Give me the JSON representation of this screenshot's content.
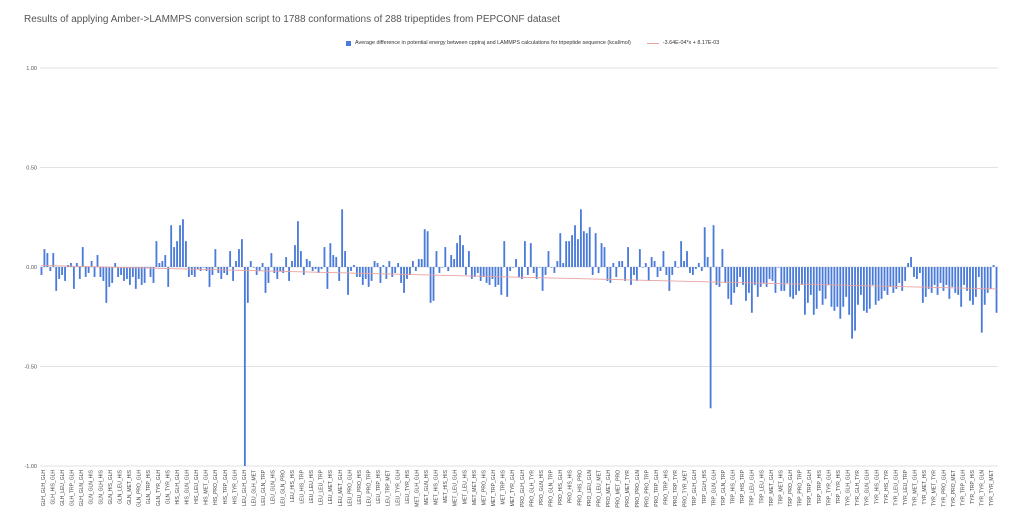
{
  "chart_data": {
    "type": "bar",
    "title": "Results of applying Amber->LAMMPS conversion script to 1788 conformations of 288 tripeptides from PEPCONF dataset",
    "xlabel": "",
    "ylabel": "",
    "ylim": [
      -1.0,
      1.0
    ],
    "yticks": [
      "-1.00",
      "-0.50",
      "0.00",
      "0.50",
      "1.00"
    ],
    "grid": true,
    "legend_position": "top-center",
    "series": [
      {
        "name": "Average difference in potential energy between cpptraj and LAMMPS calculations for tripeptide sequence (kcal/mol)",
        "color": "#4A7BD9"
      }
    ],
    "trendline": {
      "label": "-3.64E-04*x + 8.17E-03",
      "color": "#E8A1A1",
      "slope": -0.000364,
      "intercept": 0.00817
    },
    "visible_x_labels": [
      "GLH_GLH_GLH",
      "GLH_HIS_GLH",
      "GLH_LEU_GLH",
      "GLH_TRP_GLH",
      "GLH_GLN_GLH",
      "GLN_GLN_HIS",
      "GLN_GLH_HIS",
      "GLN_HIS_GLH",
      "GLN_LEU_HIS",
      "GLN_MET_HIS",
      "GLN_PRO_GLH",
      "GLN_TRP_HIS",
      "GLN_TYR_GLH",
      "GLN_TYR_HIS",
      "HIS_GLH_GLH",
      "HIS_GLN_GLH",
      "HIS_LEU_GLH",
      "HIS_MET_GLH",
      "HIS_PRO_GLH",
      "HIS_TRP_GLH",
      "HIS_TYR_GLH",
      "LEU_GLH_GLH",
      "LEU_GLH_MET",
      "LEU_GLN_TRP",
      "LEU_GLN_HIS",
      "LEU_GLN_PRO",
      "LEU_HIS_HIS",
      "LEU_HIS_TRP",
      "LEU_LEU_HIS",
      "LEU_LEU_TRP",
      "LEU_MET_HIS",
      "LEU_MET_GLH",
      "LEU_PRO_GLH",
      "LEU_PRO_HIS",
      "LEU_PRO_TRP",
      "LEU_TRP_HIS",
      "LEU_TRP_MET",
      "LEU_TYR_GLH",
      "LEU_TYR_HIS",
      "MET_GLH_GLH",
      "MET_GLN_HIS",
      "MET_HIS_GLH",
      "MET_HIS_HIS",
      "MET_LEU_GLH",
      "MET_LEU_HIS",
      "MET_MET_HIS",
      "MET_PRO_HIS",
      "MET_TRP_GLH",
      "MET_TRP_HIS",
      "MET_TYR_GLH",
      "PRO_GLH_GLH",
      "PRO_GLH_TYR",
      "PRO_GLN_HIS",
      "PRO_GLN_TRP",
      "PRO_HIS_GLH",
      "PRO_HIS_HIS",
      "PRO_HIS_PRO",
      "PRO_LEU_GLN",
      "PRO_LEU_MET",
      "PRO_MET_GLH",
      "PRO_MET_PRO",
      "PRO_MET_TYR",
      "PRO_PRO_GLN",
      "PRO_PRO_TRP",
      "PRO_TRP_GLH",
      "PRO_TRP_HIS",
      "PRO_TRP_TYR",
      "PRO_TYR_MET",
      "TRP_GLH_GLH",
      "TRP_GLH_HIS",
      "TRP_GLN_GLH",
      "TRP_GLN_TRP",
      "TRP_HIS_GLH",
      "TRP_HIS_TRP",
      "TRP_LEU_GLH",
      "TRP_LEU_HIS",
      "TRP_MET_GLH",
      "TRP_MET_HIS",
      "TRP_PRO_GLH",
      "TRP_PRO_TRP",
      "TRP_TRP_GLH",
      "TRP_TRP_HIS",
      "TRP_TYR_GLH",
      "TRP_TYR_HIS",
      "TYR_GLH_GLH",
      "TYR_GLH_TYR",
      "TYR_GLN_GLH",
      "TYR_HIS_GLH",
      "TYR_HIS_TYR",
      "TYR_LEU_GLH",
      "TYR_LEU_TRP",
      "TYR_MET_GLH",
      "TYR_MET_HIS",
      "TYR_MET_TYR",
      "TYR_PRO_GLH",
      "TYR_PRO_MET",
      "TYR_TRP_GLH",
      "TYR_TRP_HIS",
      "TYR_TYR_GLN",
      "TYR_TYR_MET"
    ],
    "values": [
      -0.04,
      0.09,
      0.07,
      -0.02,
      0.07,
      -0.12,
      -0.06,
      -0.04,
      -0.07,
      0.01,
      0.02,
      -0.11,
      0.02,
      -0.06,
      0.1,
      -0.05,
      -0.03,
      0.03,
      -0.05,
      0.06,
      -0.05,
      -0.07,
      -0.18,
      -0.1,
      -0.08,
      0.02,
      -0.05,
      -0.04,
      -0.07,
      -0.06,
      -0.09,
      -0.05,
      -0.11,
      -0.06,
      -0.09,
      -0.08,
      0.0,
      -0.05,
      -0.08,
      0.13,
      0.02,
      0.03,
      0.06,
      -0.1,
      0.21,
      0.1,
      0.13,
      0.21,
      0.24,
      0.13,
      -0.05,
      -0.04,
      -0.05,
      -0.01,
      -0.02,
      0.0,
      -0.02,
      -0.1,
      -0.04,
      0.09,
      -0.03,
      -0.06,
      -0.03,
      -0.04,
      0.08,
      -0.07,
      0.03,
      0.09,
      0.14,
      -1.0,
      -0.18,
      0.03,
      0.0,
      -0.04,
      -0.02,
      0.02,
      -0.13,
      -0.08,
      0.07,
      -0.03,
      -0.06,
      -0.02,
      -0.03,
      0.05,
      -0.07,
      0.03,
      0.11,
      0.23,
      0.08,
      -0.04,
      0.04,
      0.03,
      -0.02,
      -0.01,
      -0.03,
      -0.01,
      0.1,
      -0.11,
      0.12,
      0.06,
      0.05,
      -0.07,
      0.29,
      0.08,
      -0.14,
      -0.02,
      0.01,
      -0.05,
      -0.05,
      -0.09,
      -0.06,
      -0.1,
      -0.07,
      0.03,
      0.02,
      -0.08,
      0.01,
      -0.06,
      0.03,
      -0.05,
      -0.03,
      0.02,
      -0.08,
      -0.13,
      -0.06,
      -0.04,
      0.03,
      -0.02,
      0.04,
      0.04,
      0.19,
      0.18,
      -0.18,
      -0.17,
      0.08,
      -0.03,
      0.0,
      0.1,
      -0.02,
      0.06,
      0.04,
      0.12,
      0.16,
      0.11,
      -0.04,
      0.08,
      -0.06,
      -0.05,
      -0.03,
      -0.07,
      -0.05,
      -0.08,
      -0.09,
      -0.06,
      -0.1,
      -0.09,
      -0.14,
      0.13,
      -0.15,
      -0.02,
      0.0,
      0.04,
      -0.05,
      -0.06,
      0.13,
      -0.04,
      0.12,
      -0.03,
      -0.06,
      0.0,
      -0.12,
      -0.04,
      0.08,
      0.0,
      -0.03,
      0.03,
      0.17,
      0.02,
      0.13,
      0.13,
      0.16,
      0.21,
      0.14,
      0.29,
      0.18,
      0.17,
      0.2,
      -0.04,
      0.17,
      -0.03,
      0.12,
      0.1,
      -0.07,
      -0.08,
      0.02,
      -0.05,
      0.03,
      0.03,
      -0.07,
      0.1,
      -0.09,
      -0.04,
      -0.07,
      0.09,
      0.0,
      0.02,
      -0.07,
      0.05,
      0.03,
      -0.05,
      -0.02,
      0.08,
      -0.04,
      -0.12,
      -0.04,
      0.03,
      0.0,
      0.13,
      0.03,
      0.08,
      -0.03,
      -0.04,
      -0.01,
      0.02,
      -0.02,
      0.2,
      0.05,
      -0.71,
      0.21,
      -0.09,
      -0.1,
      0.09,
      -0.08,
      -0.16,
      -0.19,
      -0.13,
      -0.1,
      -0.05,
      -0.09,
      -0.17,
      -0.13,
      -0.23,
      -0.09,
      -0.15,
      -0.1,
      -0.08,
      -0.1,
      -0.06,
      -0.07,
      -0.13,
      0.0,
      -0.12,
      -0.12,
      -0.08,
      -0.15,
      -0.16,
      -0.14,
      -0.12,
      -0.09,
      -0.24,
      -0.18,
      -0.14,
      -0.24,
      -0.21,
      -0.12,
      -0.19,
      -0.16,
      -0.09,
      -0.2,
      -0.22,
      -0.2,
      -0.26,
      -0.2,
      -0.15,
      -0.24,
      -0.36,
      -0.32,
      -0.19,
      -0.14,
      -0.22,
      -0.23,
      -0.21,
      -0.09,
      -0.19,
      -0.17,
      -0.16,
      -0.12,
      -0.14,
      -0.1,
      -0.13,
      -0.11,
      -0.08,
      -0.12,
      -0.07,
      0.02,
      0.05,
      -0.05,
      -0.06,
      -0.03,
      -0.18,
      -0.15,
      -0.11,
      -0.13,
      -0.09,
      -0.14,
      -0.08,
      -0.12,
      -0.09,
      -0.16,
      -0.1,
      -0.13,
      -0.14,
      -0.2,
      -0.09,
      -0.12,
      -0.17,
      -0.19,
      -0.15,
      -0.05,
      -0.33,
      -0.19,
      -0.13,
      -0.11,
      0.01,
      -0.23
    ]
  }
}
